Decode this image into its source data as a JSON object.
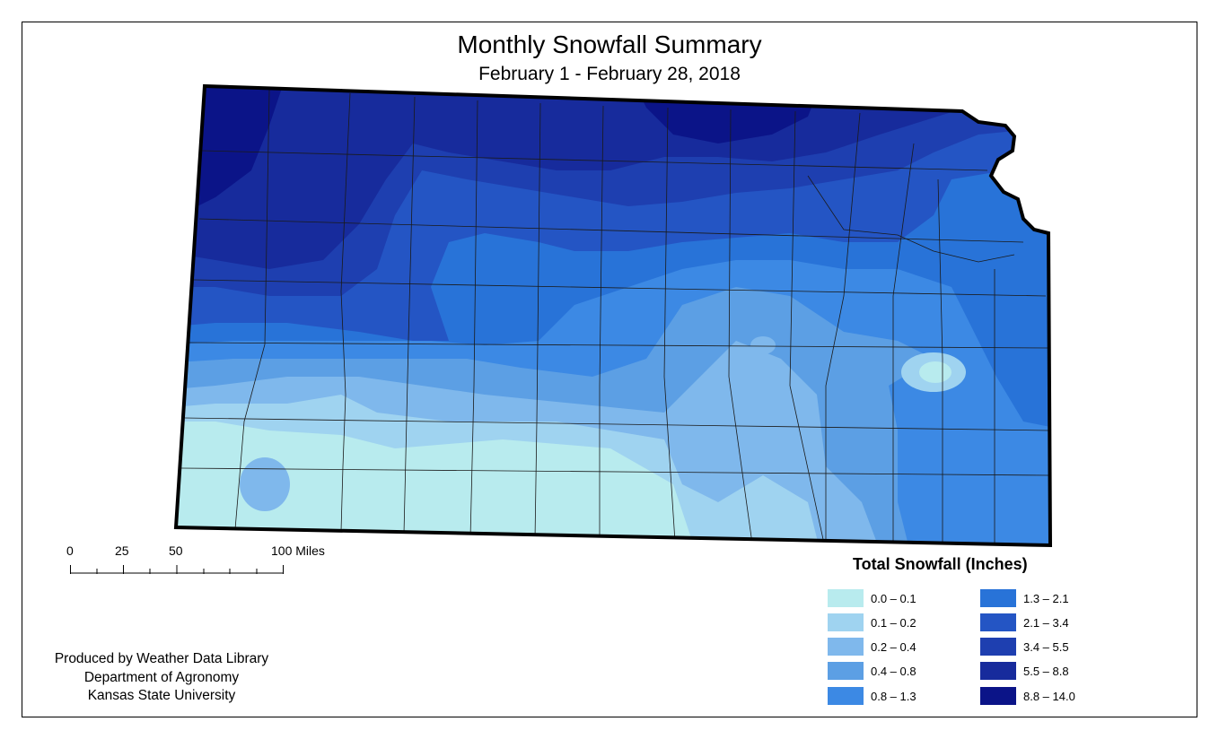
{
  "map": {
    "title": "Monthly Snowfall Summary",
    "subtitle": "February 1 - February 28, 2018",
    "region": "Kansas"
  },
  "scale_bar": {
    "labels": [
      "0",
      "25",
      "50",
      "100 Miles"
    ]
  },
  "credits": {
    "line1": "Produced by Weather Data Library",
    "line2": "Department of Agronomy",
    "line3": "Kansas State University"
  },
  "legend": {
    "title": "Total Snowfall (Inches)",
    "items": [
      {
        "label": "0.0 – 0.1",
        "color": "#b8ebee"
      },
      {
        "label": "0.1 – 0.2",
        "color": "#9fd3f0"
      },
      {
        "label": "0.2 – 0.4",
        "color": "#7fb8ec"
      },
      {
        "label": "0.4 – 0.8",
        "color": "#5c9fe4"
      },
      {
        "label": "0.8 – 1.3",
        "color": "#3c89e4"
      },
      {
        "label": "1.3 – 2.1",
        "color": "#2873d8"
      },
      {
        "label": "2.1 – 3.4",
        "color": "#2455c4"
      },
      {
        "label": "3.4 – 5.5",
        "color": "#1e3fb0"
      },
      {
        "label": "5.5 – 8.8",
        "color": "#172b9c"
      },
      {
        "label": "8.8 – 14.0",
        "color": "#0b1488"
      }
    ]
  }
}
